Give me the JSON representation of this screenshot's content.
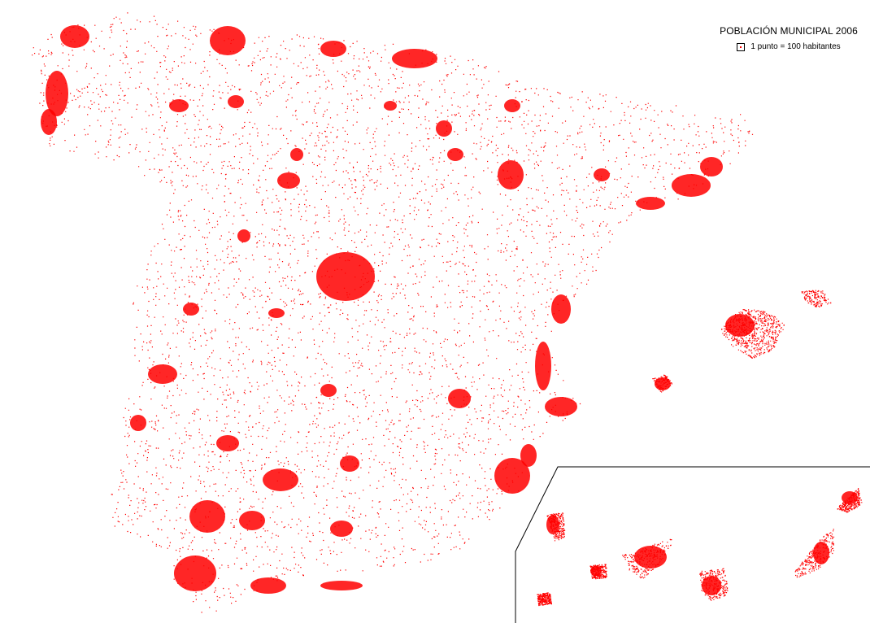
{
  "legend": {
    "title": "POBLACIÓN MUNICIPAL 2006",
    "item_label": "1 punto = 100 habitantes",
    "swatch_icon": "dot-swatch-icon"
  },
  "colors": {
    "dots": "#ff0000",
    "background": "#ffffff",
    "inset_frame": "#000000"
  },
  "map": {
    "regions": [
      "Peninsula",
      "Baleares",
      "Canarias (inset)"
    ],
    "symbol": "red-dot-density"
  }
}
